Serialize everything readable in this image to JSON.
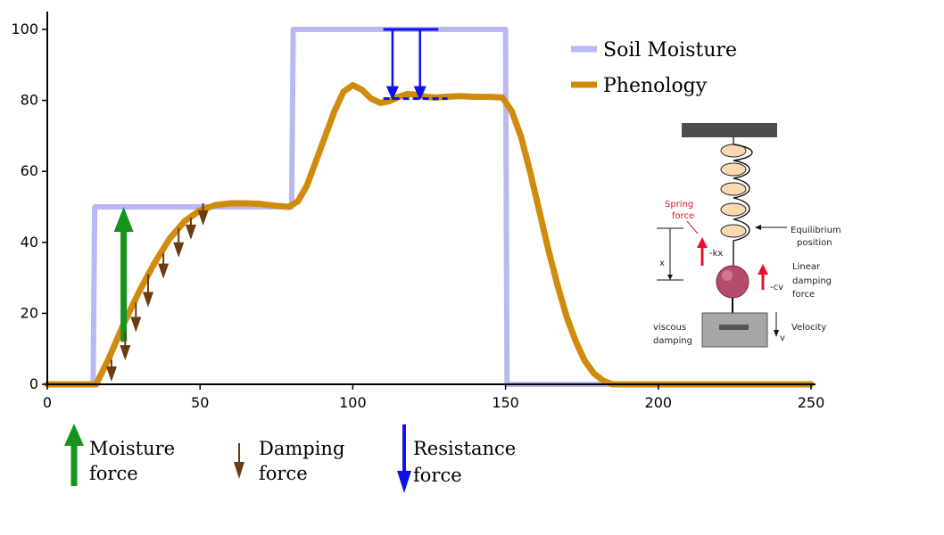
{
  "chart_data": {
    "type": "line",
    "xlim": [
      0,
      250
    ],
    "ylim": [
      0,
      100
    ],
    "x_ticks": [
      "0",
      "50",
      "100",
      "150",
      "200",
      "250"
    ],
    "y_ticks": [
      "0",
      "20",
      "40",
      "60",
      "80",
      "100"
    ],
    "grid": false,
    "legend_position": "top-right",
    "series": [
      {
        "name": "Soil Moisture",
        "color": "#b8b8f4",
        "x": [
          0,
          15,
          15.5,
          80,
          80.5,
          150,
          150.5,
          250
        ],
        "y": [
          0,
          0,
          50,
          50,
          100,
          100,
          0,
          0
        ]
      },
      {
        "name": "Phenology",
        "color": "#d08b0c",
        "x": [
          0,
          16,
          20,
          25,
          30,
          35,
          40,
          45,
          50,
          55,
          60,
          65,
          70,
          75,
          79,
          82,
          85,
          88,
          91,
          94,
          97,
          100,
          103,
          106,
          109,
          112,
          115,
          118,
          121,
          124,
          127,
          130,
          135,
          140,
          145,
          149,
          152,
          155,
          158,
          161,
          164,
          167,
          170,
          173,
          176,
          179,
          182,
          185,
          190,
          250
        ],
        "y": [
          0,
          0,
          7,
          17,
          26,
          34,
          41,
          46,
          49,
          50.5,
          51,
          51,
          50.8,
          50.3,
          50,
          51.5,
          56,
          63,
          70,
          77,
          82.5,
          84.3,
          83,
          80.5,
          79.3,
          79.8,
          81,
          81.8,
          81.6,
          81,
          80.8,
          81,
          81.2,
          81,
          81,
          80.8,
          77,
          70,
          60,
          49,
          38,
          28,
          19,
          12,
          6.5,
          3,
          1,
          0,
          0,
          0
        ]
      }
    ],
    "annotations": {
      "moisture_force_arrow": {
        "x": 25,
        "y_from": 12,
        "y_to": 50
      },
      "damping_force_arrows": [
        {
          "x": 21,
          "y_from": 7,
          "y_to": 2
        },
        {
          "x": 25.5,
          "y_from": 15,
          "y_to": 8
        },
        {
          "x": 29,
          "y_from": 23,
          "y_to": 16
        },
        {
          "x": 33,
          "y_from": 31,
          "y_to": 23
        },
        {
          "x": 38,
          "y_from": 37,
          "y_to": 31
        },
        {
          "x": 43,
          "y_from": 44,
          "y_to": 37
        },
        {
          "x": 47,
          "y_from": 47,
          "y_to": 42
        },
        {
          "x": 51,
          "y_from": 51,
          "y_to": 46
        }
      ],
      "resistance_force": {
        "bar_x_range": [
          110,
          128
        ],
        "bar_y": 100,
        "dash_x_range": [
          110,
          131
        ],
        "dash_y": 80.5,
        "arrows": [
          {
            "x": 113,
            "y_from": 100,
            "y_to": 80
          },
          {
            "x": 122,
            "y_from": 100,
            "y_to": 80
          }
        ]
      }
    }
  },
  "key": {
    "moisture_force": [
      "Moisture",
      "force"
    ],
    "damping_force": [
      "Damping",
      "force"
    ],
    "resistance_force": [
      "Resistance",
      "force"
    ],
    "colors": {
      "moisture": "#13951d",
      "damping": "#6b3a10",
      "resistance": "#1010ee"
    }
  },
  "inset": {
    "spring_force_label": [
      "Spring",
      "force"
    ],
    "kx_label": "-kx",
    "equilibrium_label": [
      "Equilibrium",
      "position"
    ],
    "x_label": "x",
    "linear_damping_label": [
      "Linear",
      "damping",
      "force"
    ],
    "cv_label": "-cv",
    "viscous_damping_label": [
      "viscous",
      "damping"
    ],
    "velocity_label": "Velocity",
    "v_label": "v"
  }
}
